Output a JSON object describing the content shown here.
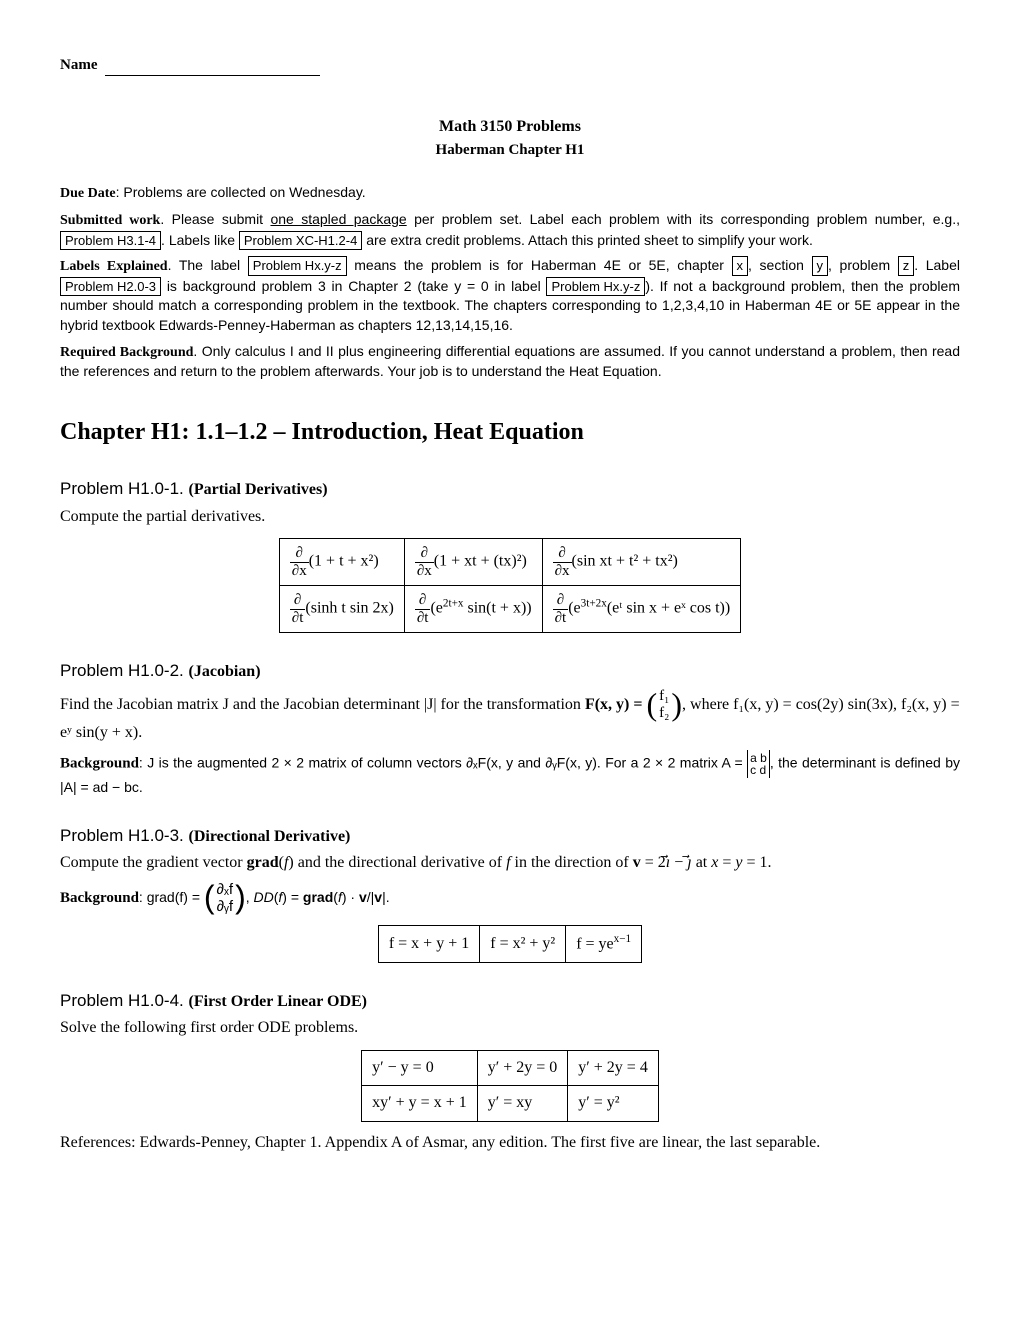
{
  "header": {
    "name_label": "Name",
    "title": "Math 3150 Problems",
    "subtitle": "Haberman Chapter H1"
  },
  "intro": {
    "due_lead": "Due Date",
    "due_text": ": Problems are collected on Wednesday.",
    "submitted_lead": "Submitted work",
    "submitted_text_a": ". Please submit ",
    "submitted_underline": "one stapled package",
    "submitted_text_b": " per problem set. Label each problem with its corresponding problem number, e.g., ",
    "box_example": "Problem H3.1-4",
    "submitted_text_c": ". Labels like ",
    "box_extra": "Problem XC-H1.2-4",
    "submitted_text_d": " are extra credit problems. Attach this printed sheet to simplify your work.",
    "labels_lead": "Labels Explained",
    "labels_text_a": ". The label ",
    "box_label1": "Problem Hx.y-z",
    "labels_text_b": " means the problem is for Haberman 4E or 5E, chapter ",
    "box_x": "x",
    "labels_text_c": ", section ",
    "box_y": "y",
    "labels_text_d": ", problem ",
    "box_z": "z",
    "labels_text_e": ". Label ",
    "box_label2": "Problem H2.0-3",
    "labels_text_f": " is background problem 3 in Chapter 2 (take y = 0 in label ",
    "box_label3": "Problem Hx.y-z",
    "labels_text_g": "). If not a background problem, then the problem number should match a corresponding problem in the textbook. The chapters corresponding to 1,2,3,4,10 in Haberman 4E or 5E appear in the hybrid textbook Edwards-Penney-Haberman as chapters 12,13,14,15,16.",
    "req_lead": "Required Background",
    "req_text": ". Only calculus I and II plus engineering differential equations are assumed. If you cannot understand a problem, then read the references and return to the problem afterwards. Your job is to understand the Heat Equation."
  },
  "chapter_title": "Chapter H1: 1.1–1.2 – Introduction, Heat Equation",
  "p1": {
    "head": "Problem H1.0-1.",
    "title": "(Partial Derivatives)",
    "body": "Compute the partial derivatives.",
    "table": {
      "r1c1_var": "∂x",
      "r1c1_expr": "(1 + t + x²)",
      "r1c2_var": "∂x",
      "r1c2_expr": "(1 + xt + (tx)²)",
      "r1c3_var": "∂x",
      "r1c3_expr": "(sin xt + t² + tx²)",
      "r2c1_var": "∂t",
      "r2c1_expr": "(sinh t sin 2x)",
      "r2c2_var": "∂t",
      "r2c2_expr_a": "(e",
      "r2c2_sup": "2t+x",
      "r2c2_expr_b": " sin(t + x))",
      "r2c3_var": "∂t",
      "r2c3_expr_a": "(e",
      "r2c3_sup1": "3t+2x",
      "r2c3_expr_b": "(eᵗ sin x + eˣ cos t))"
    }
  },
  "p2": {
    "head": "Problem H1.0-2.",
    "title": "(Jacobian)",
    "body_a": "Find the Jacobian matrix J and the Jacobian determinant |J| for the transformation ",
    "Fxy": "F(x, y) = ",
    "vec_top": "f₁",
    "vec_bot": "f₂",
    "body_b": ", where f₁(x, y) = cos(2y) sin(3x), f₂(x, y) = eʸ sin(y + x).",
    "bg_lead": "Background",
    "bg_text_a": ": J is the augmented 2 × 2 matrix of column vectors ∂ₓF(x, y and ∂ᵧF(x, y). For a 2 × 2 matrix A = ",
    "det_a": "a",
    "det_b": "b",
    "det_c": "c",
    "det_d": "d",
    "bg_text_b": ", the determinant is defined by |A| = ad − bc."
  },
  "p3": {
    "head": "Problem H1.0-3.",
    "title": "(Directional Derivative)",
    "body": "Compute the gradient vector grad(f) and the directional derivative of f in the direction of v = 2⃗ı − ⃗ȷ at x = y = 1.",
    "bg_lead": "Background",
    "bg_text_a": ": grad(f) = ",
    "gvec_top": "∂ₓf",
    "gvec_bot": "∂ᵧf",
    "bg_text_b": ", DD(f) = grad(f) · v/|v|.",
    "table": {
      "c1": "f = x + y + 1",
      "c2": "f = x² + y²",
      "c3_a": "f = ye",
      "c3_sup": "x−1"
    }
  },
  "p4": {
    "head": "Problem H1.0-4.",
    "title": "(First Order Linear ODE)",
    "body": "Solve the following first order ODE problems.",
    "table": {
      "r1c1": "y′ − y = 0",
      "r1c2": "y′ + 2y = 0",
      "r1c3": "y′ + 2y = 4",
      "r2c1": "xy′ + y = x + 1",
      "r2c2": "y′ = xy",
      "r2c3": "y′ = y²"
    },
    "refs": "References: Edwards-Penney, Chapter 1. Appendix A of Asmar, any edition. The first five are linear, the last separable."
  }
}
